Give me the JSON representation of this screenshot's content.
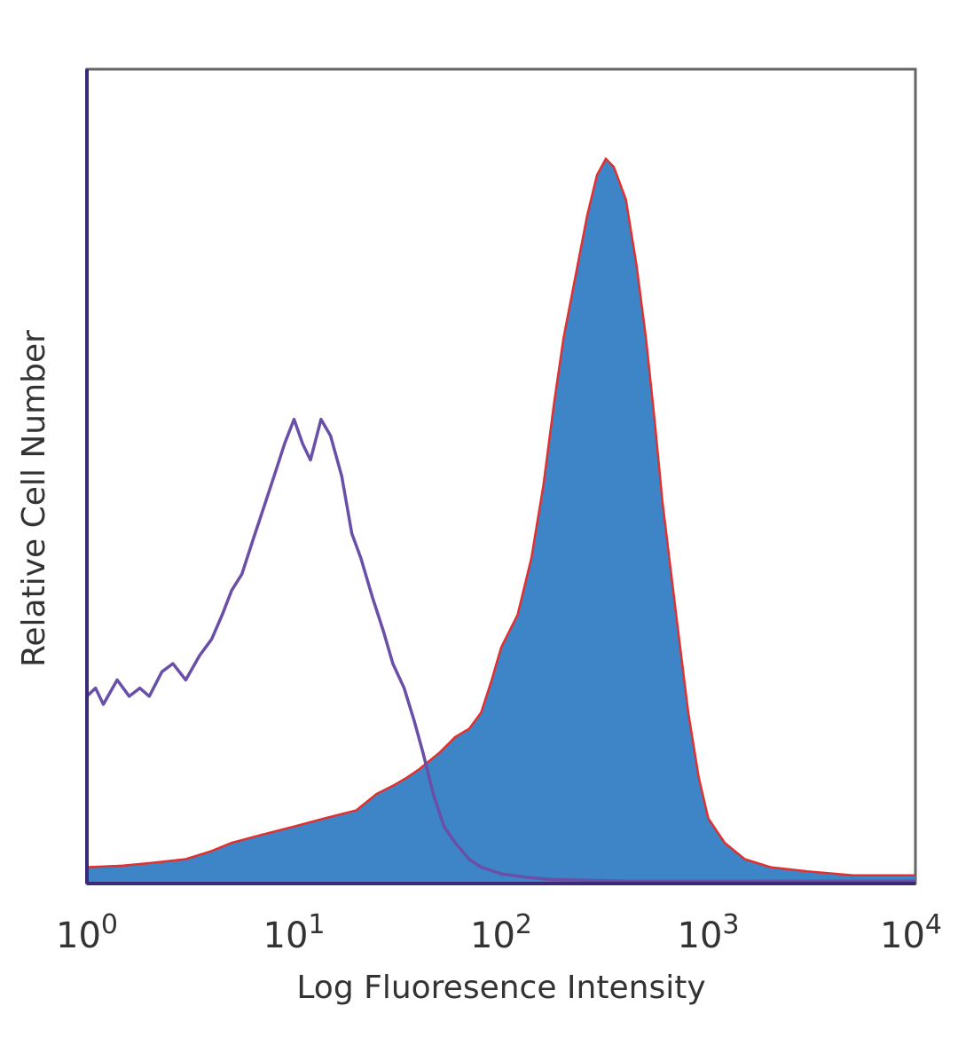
{
  "chart_data": {
    "type": "area",
    "title": "",
    "xlabel": "Log Fluoresence Intensity",
    "ylabel": "Relative Cell Number",
    "x_scale": "log",
    "xlim": [
      1,
      10000
    ],
    "ylim": [
      0,
      100
    ],
    "x_ticks": [
      {
        "value": 1,
        "base": "10",
        "exp": "0"
      },
      {
        "value": 10,
        "base": "10",
        "exp": "1"
      },
      {
        "value": 100,
        "base": "10",
        "exp": "2"
      },
      {
        "value": 1000,
        "base": "10",
        "exp": "3"
      },
      {
        "value": 10000,
        "base": "10",
        "exp": "4"
      }
    ],
    "grid": false,
    "legend": "none",
    "series": [
      {
        "style": "line",
        "color": "#6a4fa8",
        "x": [
          1,
          1.1,
          1.2,
          1.4,
          1.6,
          1.8,
          2.0,
          2.3,
          2.6,
          3.0,
          3.5,
          4.0,
          4.5,
          5.0,
          5.6,
          6.3,
          7.1,
          8.0,
          9.0,
          10,
          11,
          12,
          13.5,
          15,
          17,
          19,
          21,
          24,
          27,
          30,
          34,
          38,
          42,
          47,
          53,
          60,
          70,
          80,
          100,
          130,
          170,
          250,
          400,
          700,
          1000,
          2000,
          5000,
          10000
        ],
        "y": [
          23,
          24,
          22,
          25,
          23,
          24,
          23,
          26,
          27,
          25,
          28,
          30,
          33,
          36,
          38,
          42,
          46,
          50,
          54,
          57,
          54,
          52,
          57,
          55,
          50,
          43,
          40,
          35,
          31,
          27,
          24,
          20,
          16,
          11,
          7,
          5,
          3,
          2,
          1.2,
          0.8,
          0.5,
          0.4,
          0.3,
          0.3,
          0.3,
          0.3,
          0.3,
          0.3
        ]
      },
      {
        "style": "filled",
        "color": "#3d85c6",
        "outline": "#e03030",
        "x": [
          1,
          1.5,
          2.0,
          3.0,
          4.0,
          5.0,
          7.0,
          10,
          14,
          20,
          25,
          30,
          35,
          40,
          50,
          60,
          70,
          80,
          90,
          100,
          120,
          140,
          160,
          180,
          200,
          230,
          260,
          290,
          320,
          350,
          400,
          450,
          500,
          550,
          600,
          700,
          800,
          900,
          1000,
          1200,
          1500,
          2000,
          3000,
          5000,
          10000
        ],
        "y": [
          2,
          2.2,
          2.5,
          3,
          4,
          5,
          6,
          7,
          8,
          9,
          11,
          12,
          13,
          14,
          16,
          18,
          19,
          21,
          25,
          29,
          33,
          40,
          49,
          59,
          67,
          75,
          82,
          87,
          89,
          88,
          84,
          76,
          67,
          57,
          47,
          33,
          21,
          13,
          8,
          5,
          3,
          2,
          1.5,
          1,
          1
        ]
      }
    ]
  }
}
